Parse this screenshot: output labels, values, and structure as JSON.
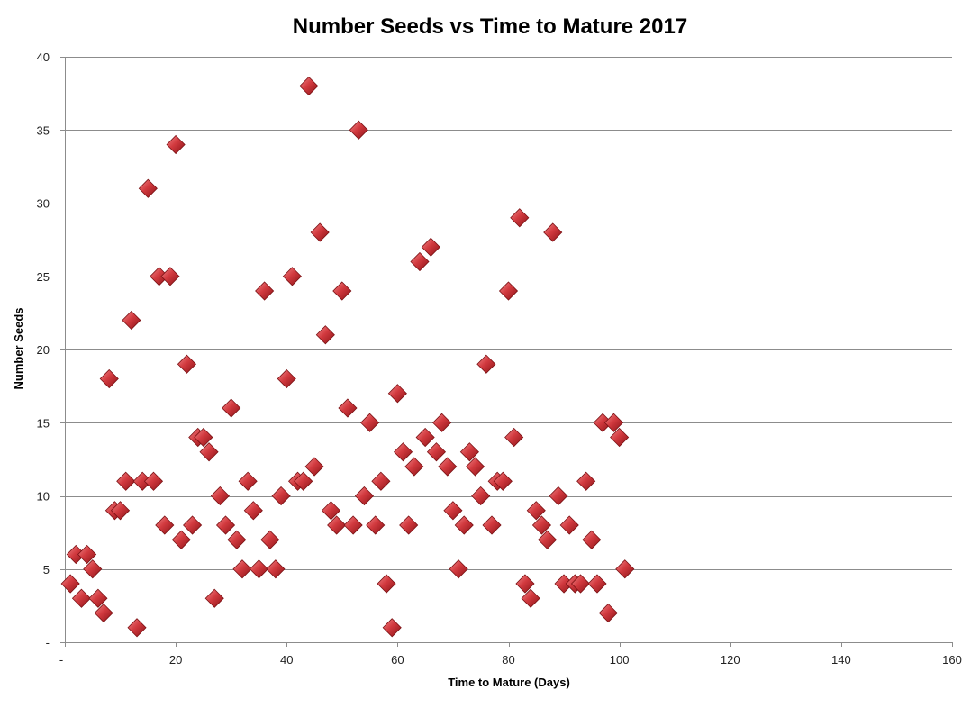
{
  "chart_data": {
    "type": "scatter",
    "title": "Number Seeds vs Time to Mature 2017",
    "xlabel": "Time to Mature (Days)",
    "ylabel": "Number Seeds",
    "xlim": [
      0,
      160
    ],
    "ylim": [
      0,
      40
    ],
    "x_ticks": [
      0,
      20,
      40,
      60,
      80,
      100,
      120,
      140,
      160
    ],
    "x_tick_labels": [
      "-",
      "20",
      "40",
      "60",
      "80",
      "100",
      "120",
      "140",
      "160"
    ],
    "y_ticks": [
      0,
      5,
      10,
      15,
      20,
      25,
      30,
      35,
      40
    ],
    "y_tick_labels": [
      "-",
      "5",
      "10",
      "15",
      "20",
      "25",
      "30",
      "35",
      "40"
    ],
    "grid": "horizontal",
    "marker": "diamond",
    "marker_color": "#c0272d",
    "points": [
      [
        1,
        4
      ],
      [
        2,
        6
      ],
      [
        3,
        3
      ],
      [
        4,
        6
      ],
      [
        5,
        5
      ],
      [
        6,
        3
      ],
      [
        7,
        2
      ],
      [
        8,
        18
      ],
      [
        9,
        9
      ],
      [
        10,
        9
      ],
      [
        11,
        11
      ],
      [
        12,
        22
      ],
      [
        13,
        1
      ],
      [
        14,
        11
      ],
      [
        15,
        31
      ],
      [
        16,
        11
      ],
      [
        17,
        25
      ],
      [
        18,
        8
      ],
      [
        19,
        25
      ],
      [
        20,
        34
      ],
      [
        21,
        7
      ],
      [
        22,
        19
      ],
      [
        23,
        8
      ],
      [
        24,
        14
      ],
      [
        25,
        14
      ],
      [
        26,
        13
      ],
      [
        27,
        3
      ],
      [
        28,
        10
      ],
      [
        29,
        8
      ],
      [
        30,
        16
      ],
      [
        31,
        7
      ],
      [
        32,
        5
      ],
      [
        33,
        11
      ],
      [
        34,
        9
      ],
      [
        35,
        5
      ],
      [
        36,
        24
      ],
      [
        37,
        7
      ],
      [
        38,
        5
      ],
      [
        39,
        10
      ],
      [
        40,
        18
      ],
      [
        41,
        25
      ],
      [
        42,
        11
      ],
      [
        43,
        11
      ],
      [
        44,
        38
      ],
      [
        45,
        12
      ],
      [
        46,
        28
      ],
      [
        47,
        21
      ],
      [
        48,
        9
      ],
      [
        49,
        8
      ],
      [
        50,
        24
      ],
      [
        51,
        16
      ],
      [
        52,
        8
      ],
      [
        53,
        35
      ],
      [
        54,
        10
      ],
      [
        55,
        15
      ],
      [
        56,
        8
      ],
      [
        57,
        11
      ],
      [
        58,
        4
      ],
      [
        59,
        1
      ],
      [
        60,
        17
      ],
      [
        61,
        13
      ],
      [
        62,
        8
      ],
      [
        63,
        12
      ],
      [
        64,
        26
      ],
      [
        65,
        14
      ],
      [
        66,
        27
      ],
      [
        67,
        13
      ],
      [
        68,
        15
      ],
      [
        69,
        12
      ],
      [
        70,
        9
      ],
      [
        71,
        5
      ],
      [
        72,
        8
      ],
      [
        73,
        13
      ],
      [
        74,
        12
      ],
      [
        75,
        10
      ],
      [
        76,
        19
      ],
      [
        77,
        8
      ],
      [
        78,
        11
      ],
      [
        79,
        11
      ],
      [
        80,
        24
      ],
      [
        81,
        14
      ],
      [
        82,
        29
      ],
      [
        83,
        4
      ],
      [
        84,
        3
      ],
      [
        85,
        9
      ],
      [
        86,
        8
      ],
      [
        87,
        7
      ],
      [
        88,
        28
      ],
      [
        89,
        10
      ],
      [
        90,
        4
      ],
      [
        91,
        8
      ],
      [
        92,
        4
      ],
      [
        93,
        4
      ],
      [
        94,
        11
      ],
      [
        95,
        7
      ],
      [
        96,
        4
      ],
      [
        97,
        15
      ],
      [
        98,
        2
      ],
      [
        99,
        15
      ],
      [
        100,
        14
      ],
      [
        101,
        5
      ]
    ]
  }
}
